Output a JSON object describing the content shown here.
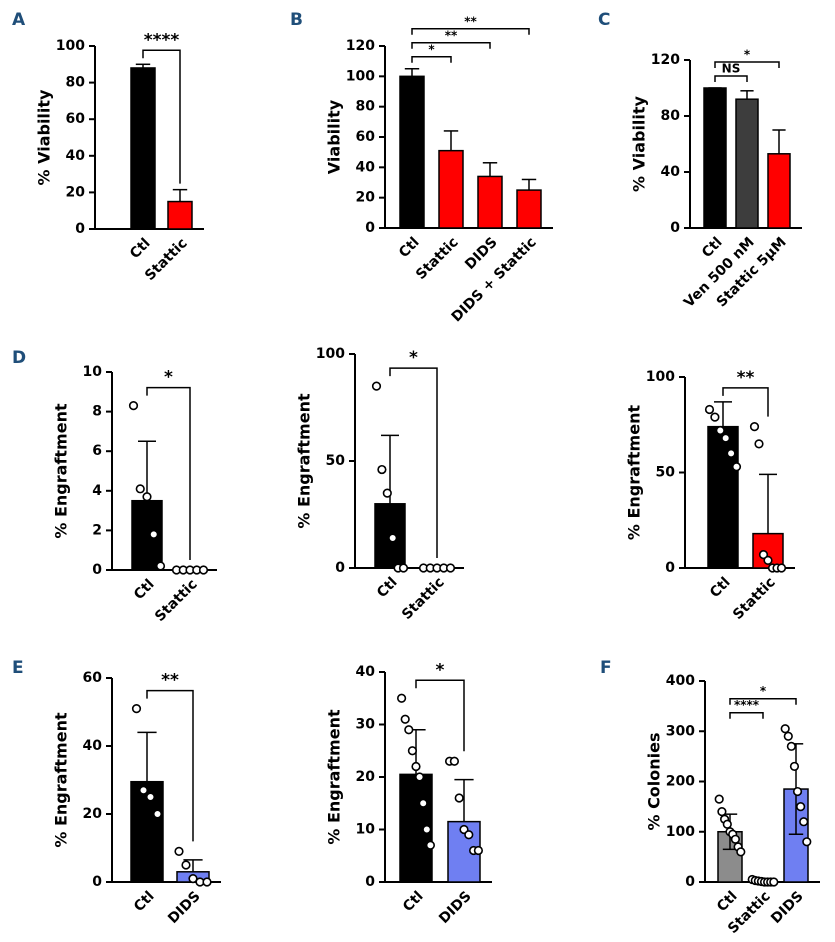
{
  "chart_data": [
    {
      "type": "bar",
      "panel": "A",
      "ylabel": "% Viability",
      "categories": [
        "Ctl",
        "Stattic"
      ],
      "values": [
        88,
        15
      ],
      "errors": [
        2,
        6.5
      ],
      "colors": [
        "#000000",
        "#ff0000"
      ],
      "points": [
        [],
        []
      ],
      "ylim": [
        0,
        100
      ],
      "yticks": [
        0,
        20,
        40,
        60,
        80,
        100
      ],
      "error_bars": "up",
      "comparisons": [
        {
          "pair": [
            0,
            1
          ],
          "label": "****"
        }
      ]
    },
    {
      "type": "bar",
      "panel": "B",
      "ylabel": "Viability",
      "categories": [
        "Ctl",
        "Stattic",
        "DIDS",
        "DIDS + Stattic"
      ],
      "values": [
        100,
        51,
        34,
        25
      ],
      "errors": [
        5,
        13,
        9,
        7
      ],
      "colors": [
        "#000000",
        "#ff0000",
        "#ff0000",
        "#ff0000"
      ],
      "points": [
        [],
        [],
        [],
        []
      ],
      "ylim": [
        0,
        120
      ],
      "yticks": [
        0,
        20,
        40,
        60,
        80,
        100,
        120
      ],
      "error_bars": "up",
      "comparisons": [
        {
          "pair": [
            0,
            1
          ],
          "label": "*"
        },
        {
          "pair": [
            0,
            2
          ],
          "label": "**"
        },
        {
          "pair": [
            0,
            3
          ],
          "label": "**"
        }
      ]
    },
    {
      "type": "bar",
      "panel": "C",
      "ylabel": "% Viability",
      "categories": [
        "Ctl",
        "Ven 500 nM",
        "Stattic 5μM"
      ],
      "values": [
        100,
        92,
        53
      ],
      "errors": [
        0,
        6,
        17
      ],
      "colors": [
        "#000000",
        "#3d3d3d",
        "#ff0000"
      ],
      "points": [
        [],
        [],
        []
      ],
      "ylim": [
        0,
        120
      ],
      "yticks": [
        0,
        40,
        80,
        120
      ],
      "error_bars": "up",
      "comparisons": [
        {
          "pair": [
            0,
            1
          ],
          "label": "NS"
        },
        {
          "pair": [
            0,
            2
          ],
          "label": "*"
        }
      ]
    },
    {
      "type": "bar",
      "panel": "D",
      "ylabel": "% Engraftment",
      "categories": [
        "Ctl",
        "Stattic"
      ],
      "values": [
        3.5,
        0
      ],
      "errors": [
        3,
        0
      ],
      "colors": [
        "#000000",
        "#ff0000"
      ],
      "points": [
        [
          8.3,
          4.1,
          3.7,
          1.8,
          0.2
        ],
        [
          0,
          0,
          0,
          0,
          0
        ]
      ],
      "ylim": [
        0,
        10
      ],
      "yticks": [
        0,
        2,
        4,
        6,
        8,
        10
      ],
      "error_bars": "up",
      "comparisons": [
        {
          "pair": [
            0,
            1
          ],
          "label": "*"
        }
      ]
    },
    {
      "type": "bar",
      "ylabel": "% Engraftment",
      "categories": [
        "Ctl",
        "Stattic"
      ],
      "values": [
        30,
        0
      ],
      "errors": [
        32,
        0
      ],
      "colors": [
        "#000000",
        "#ff0000"
      ],
      "points": [
        [
          85,
          46,
          35,
          14,
          0,
          0
        ],
        [
          0,
          0,
          0,
          0,
          0
        ]
      ],
      "ylim": [
        0,
        100
      ],
      "yticks": [
        0,
        50,
        100
      ],
      "error_bars": "up",
      "comparisons": [
        {
          "pair": [
            0,
            1
          ],
          "label": "*"
        }
      ]
    },
    {
      "type": "bar",
      "ylabel": "% Engraftment",
      "categories": [
        "Ctl",
        "Stattic"
      ],
      "values": [
        74,
        18
      ],
      "errors": [
        13,
        31
      ],
      "colors": [
        "#000000",
        "#ff0000"
      ],
      "points": [
        [
          83,
          79,
          72,
          68,
          60,
          53
        ],
        [
          74,
          65,
          7,
          4,
          0,
          0,
          0
        ]
      ],
      "ylim": [
        0,
        100
      ],
      "yticks": [
        0,
        50,
        100
      ],
      "error_bars": "up",
      "comparisons": [
        {
          "pair": [
            0,
            1
          ],
          "label": "**"
        }
      ]
    },
    {
      "type": "bar",
      "panel": "E",
      "ylabel": "% Engraftment",
      "categories": [
        "Ctl",
        "DIDS"
      ],
      "values": [
        29.5,
        3
      ],
      "errors": [
        14.5,
        3.5
      ],
      "colors": [
        "#000000",
        "#6f7ff2"
      ],
      "points": [
        [
          51,
          27,
          25,
          20
        ],
        [
          9,
          5,
          1,
          0,
          0
        ]
      ],
      "ylim": [
        0,
        60
      ],
      "yticks": [
        0,
        20,
        40,
        60
      ],
      "error_bars": "up",
      "comparisons": [
        {
          "pair": [
            0,
            1
          ],
          "label": "**"
        }
      ]
    },
    {
      "type": "bar",
      "ylabel": "% Engraftment",
      "categories": [
        "Ctl",
        "DIDS"
      ],
      "values": [
        20.5,
        11.5
      ],
      "errors": [
        8.5,
        8
      ],
      "colors": [
        "#000000",
        "#6f7ff2"
      ],
      "points": [
        [
          35,
          31,
          29,
          25,
          22,
          20,
          15,
          10,
          7
        ],
        [
          23,
          23,
          16,
          10,
          9,
          6,
          6
        ]
      ],
      "ylim": [
        0,
        40
      ],
      "yticks": [
        0,
        10,
        20,
        30,
        40
      ],
      "error_bars": "up",
      "comparisons": [
        {
          "pair": [
            0,
            1
          ],
          "label": "*"
        }
      ]
    },
    {
      "type": "bar",
      "panel": "F",
      "ylabel": "% Colonies",
      "categories": [
        "Ctl",
        "Stattic",
        "DIDS"
      ],
      "values": [
        100,
        3,
        185
      ],
      "errors": [
        35,
        2,
        90
      ],
      "colors": [
        "#8c8c8c",
        "#000000",
        "#6f7ff2"
      ],
      "points": [
        [
          165,
          140,
          125,
          115,
          100,
          95,
          85,
          70,
          60
        ],
        [
          5,
          3,
          2,
          1,
          0,
          0,
          0,
          0
        ],
        [
          305,
          290,
          270,
          230,
          180,
          150,
          120,
          80
        ]
      ],
      "ylim": [
        0,
        400
      ],
      "yticks": [
        0,
        100,
        200,
        300,
        400
      ],
      "error_bars": "both",
      "comparisons": [
        {
          "pair": [
            0,
            1
          ],
          "label": "****"
        },
        {
          "pair": [
            0,
            2
          ],
          "label": "*"
        }
      ]
    }
  ]
}
